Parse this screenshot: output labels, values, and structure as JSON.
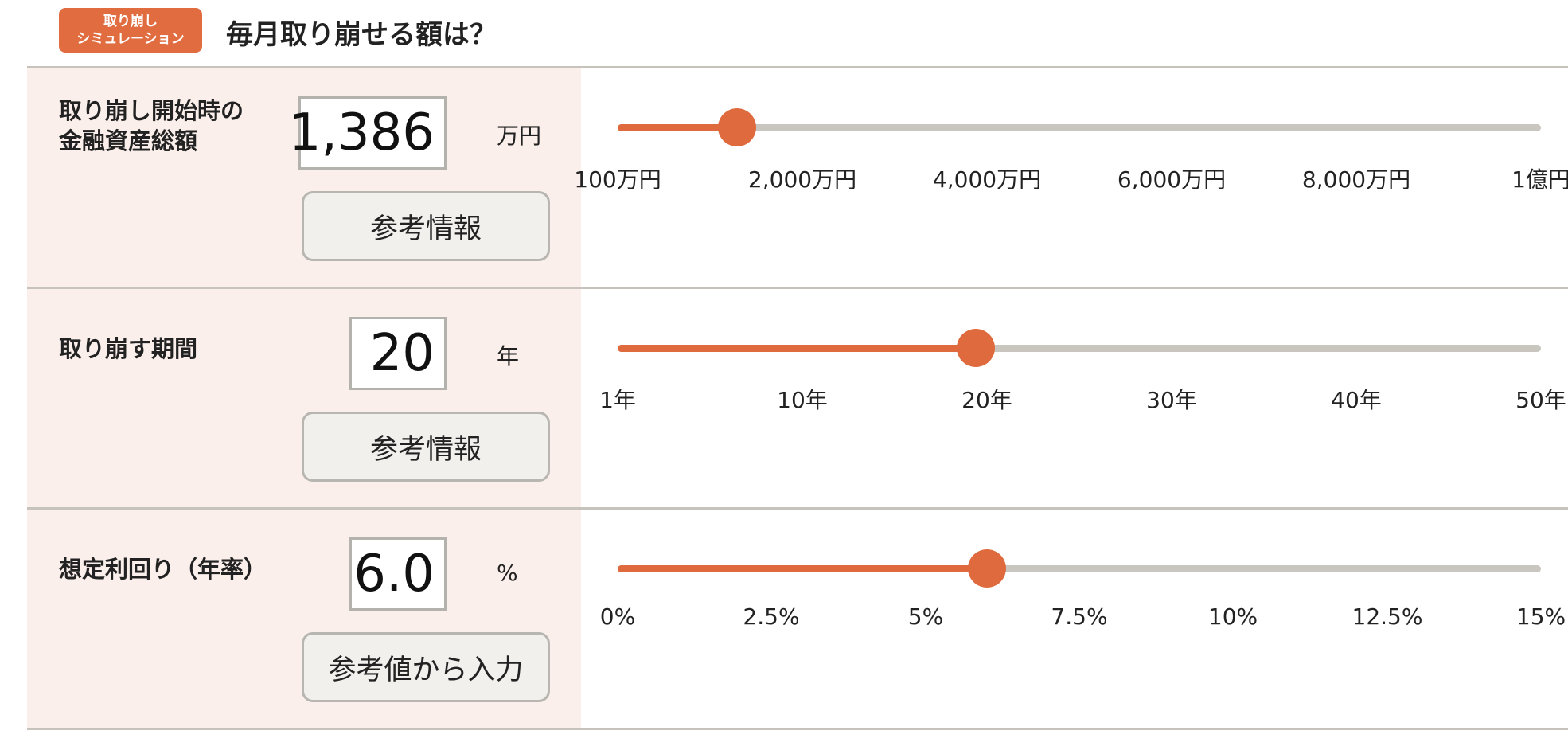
{
  "header": {
    "badge_line1": "取り崩し",
    "badge_line2": "シミュレーション",
    "title": "毎月取り崩せる額は？"
  },
  "rows": [
    {
      "label_line1": "取り崩し開始時の",
      "label_line2": "金融資産総額",
      "value": "1,386",
      "unit": "万円",
      "button": "参考情報",
      "slider_fraction": 0.129,
      "ticks": [
        {
          "label": "100万円"
        },
        {
          "label": "2,000万円"
        },
        {
          "label": "4,000万円"
        },
        {
          "label": "6,000万円"
        },
        {
          "label": "8,000万円"
        },
        {
          "label": "1億円"
        }
      ]
    },
    {
      "label_line1": "取り崩す期間",
      "value": "20",
      "unit": "年",
      "button": "参考情報",
      "slider_fraction": 0.388,
      "ticks": [
        {
          "label": "1年"
        },
        {
          "label": "10年"
        },
        {
          "label": "20年"
        },
        {
          "label": "30年"
        },
        {
          "label": "40年"
        },
        {
          "label": "50年"
        }
      ]
    },
    {
      "label_line1": "想定利回り（年率）",
      "value": "6.0",
      "unit": "%",
      "button": "参考値から入力",
      "slider_fraction": 0.4,
      "ticks": [
        {
          "label": "0%"
        },
        {
          "label": "2.5%"
        },
        {
          "label": "5%"
        },
        {
          "label": "7.5%"
        },
        {
          "label": "10%"
        },
        {
          "label": "12.5%"
        },
        {
          "label": "15%"
        }
      ]
    }
  ],
  "colors": {
    "accent": "#df6a3e",
    "track": "#c9c6bf",
    "panel_bg": "#faefeb"
  }
}
